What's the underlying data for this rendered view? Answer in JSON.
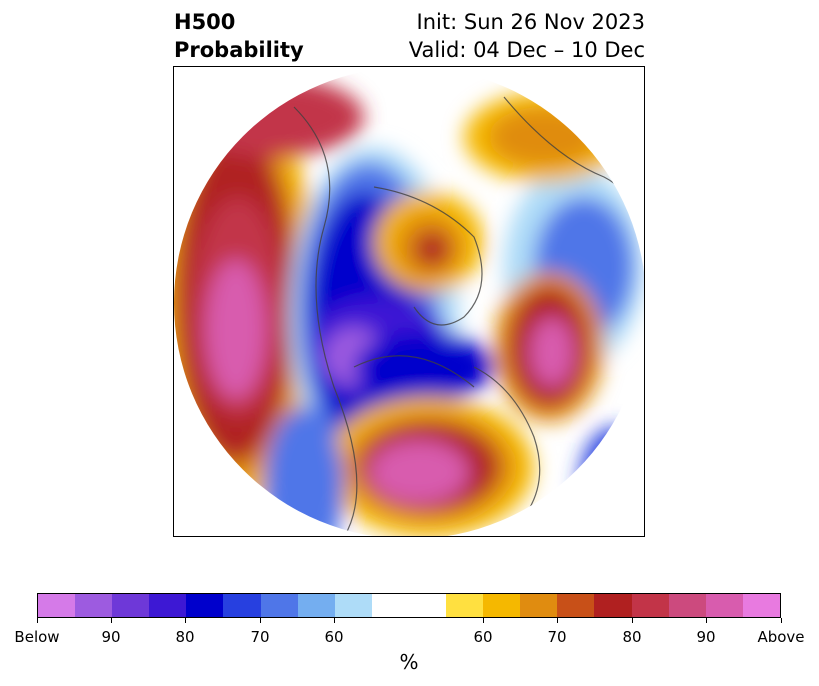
{
  "header": {
    "title_line1": "H500",
    "title_line2": "Probability",
    "init": "Init: Sun 26 Nov 2023",
    "valid": "Valid: 04 Dec – 10 Dec"
  },
  "map": {
    "projection": "polar stereographic (north pole)",
    "legend_unit": "%"
  },
  "colorbar": {
    "colors": [
      "#d57ae8",
      "#9d5be0",
      "#6e38d8",
      "#3d18d4",
      "#0000cc",
      "#2740e0",
      "#4f76e8",
      "#74aef0",
      "#aedcf8",
      "#ffffff",
      "#ffe040",
      "#f5b800",
      "#e08c10",
      "#c85018",
      "#b02020",
      "#c23448",
      "#cc4a7e",
      "#d85cae",
      "#e87ae0"
    ],
    "tick_labels": [
      "Below",
      "90",
      "80",
      "70",
      "60",
      "60",
      "70",
      "80",
      "90",
      "Above"
    ]
  }
}
